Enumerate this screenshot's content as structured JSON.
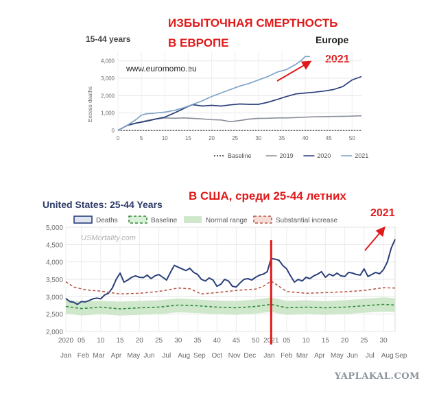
{
  "annotations": {
    "eu_title_line1": "ИЗБЫТОЧНАЯ СМЕРТНОСТЬ",
    "eu_title_line2": "В ЕВРОПЕ",
    "us_title_ru": "В США, среди 25-44 летних",
    "eu_year_note": "2021",
    "us_year_note": "2021",
    "color": "#e0191a"
  },
  "watermark": "YAPLAKAL.COM",
  "chart_data": [
    {
      "type": "line",
      "title": "15-44 years",
      "region": "Europe",
      "source": "www.euromomo.eu",
      "xlabel": "",
      "ylabel": "Excess deaths",
      "xlim": [
        0,
        52
      ],
      "ylim": [
        0,
        4500
      ],
      "x_ticks": [
        0,
        5,
        10,
        15,
        20,
        25,
        30,
        35,
        40,
        45,
        50
      ],
      "y_ticks": [
        0,
        1000,
        2000,
        3000,
        4000
      ],
      "y_tick_labels": [
        "0",
        "1,000",
        "2,000",
        "3,000",
        "4,000"
      ],
      "grid": true,
      "legend_position": "bottom",
      "series": [
        {
          "name": "Baseline",
          "color": "#333333",
          "style": "dotted",
          "x": [
            0,
            52
          ],
          "y": [
            0,
            0
          ]
        },
        {
          "name": "2019",
          "color": "#8a8f99",
          "x": [
            0,
            2,
            4,
            6,
            8,
            10,
            12,
            14,
            16,
            18,
            20,
            22,
            24,
            26,
            28,
            30,
            32,
            34,
            36,
            38,
            40,
            42,
            44,
            46,
            48,
            50,
            52
          ],
          "y": [
            0,
            280,
            420,
            560,
            650,
            720,
            700,
            720,
            690,
            660,
            620,
            600,
            500,
            570,
            650,
            690,
            700,
            720,
            720,
            740,
            760,
            780,
            790,
            800,
            810,
            820,
            840
          ]
        },
        {
          "name": "2020",
          "color": "#2a3f7a",
          "x": [
            0,
            2,
            4,
            6,
            8,
            10,
            12,
            14,
            15,
            16,
            18,
            20,
            22,
            24,
            26,
            28,
            30,
            32,
            34,
            36,
            38,
            40,
            42,
            44,
            46,
            48,
            50,
            52
          ],
          "y": [
            0,
            300,
            430,
            520,
            650,
            760,
            1000,
            1250,
            1380,
            1480,
            1400,
            1440,
            1400,
            1470,
            1520,
            1500,
            1500,
            1620,
            1780,
            1950,
            2100,
            2150,
            2200,
            2260,
            2350,
            2520,
            2900,
            3100
          ]
        },
        {
          "name": "2021",
          "color": "#7ea3c8",
          "x": [
            0,
            2,
            4,
            5,
            6,
            8,
            10,
            12,
            14,
            16,
            18,
            20,
            22,
            24,
            26,
            28,
            30,
            32,
            34,
            36,
            38,
            39,
            40,
            41
          ],
          "y": [
            0,
            300,
            650,
            880,
            950,
            1000,
            1050,
            1150,
            1300,
            1500,
            1700,
            1950,
            2150,
            2350,
            2550,
            2700,
            2900,
            3100,
            3350,
            3500,
            3800,
            4000,
            4250,
            4250
          ]
        }
      ]
    },
    {
      "type": "line",
      "title": "United States: 25-44 Years",
      "source": "USMortality.com",
      "xlabel": "",
      "ylabel": "",
      "xlim": [
        1,
        86
      ],
      "ylim": [
        2000,
        5000
      ],
      "y_ticks": [
        2000,
        2500,
        3000,
        3500,
        4000,
        4500,
        5000
      ],
      "y_tick_labels": [
        "2,000",
        "2,500",
        "3,000",
        "3,500",
        "4,000",
        "4,500",
        "5,000"
      ],
      "week_ticks": [
        {
          "x": 1,
          "label": "2020"
        },
        {
          "x": 5,
          "label": "05"
        },
        {
          "x": 10,
          "label": "10"
        },
        {
          "x": 15,
          "label": "15"
        },
        {
          "x": 20,
          "label": "20"
        },
        {
          "x": 25,
          "label": "25"
        },
        {
          "x": 30,
          "label": "30"
        },
        {
          "x": 35,
          "label": "35"
        },
        {
          "x": 40,
          "label": "40"
        },
        {
          "x": 45,
          "label": "45"
        },
        {
          "x": 50,
          "label": "50"
        },
        {
          "x": 54,
          "label": "2021"
        },
        {
          "x": 58,
          "label": "05"
        },
        {
          "x": 63,
          "label": "10"
        },
        {
          "x": 68,
          "label": "15"
        },
        {
          "x": 73,
          "label": "20"
        },
        {
          "x": 78,
          "label": "25"
        },
        {
          "x": 83,
          "label": "30"
        }
      ],
      "month_ticks": [
        {
          "x": 1,
          "label": "Jan"
        },
        {
          "x": 5.5,
          "label": "Feb"
        },
        {
          "x": 9.5,
          "label": "Mar"
        },
        {
          "x": 14,
          "label": "Apr"
        },
        {
          "x": 18.5,
          "label": "May"
        },
        {
          "x": 22.5,
          "label": "Jun"
        },
        {
          "x": 27,
          "label": "Jul"
        },
        {
          "x": 31.5,
          "label": "Aug"
        },
        {
          "x": 35.5,
          "label": "Sep"
        },
        {
          "x": 40,
          "label": "Oct"
        },
        {
          "x": 44.5,
          "label": "Nov"
        },
        {
          "x": 48.5,
          "label": "Dec"
        },
        {
          "x": 53.5,
          "label": "Jan"
        },
        {
          "x": 58,
          "label": "Feb"
        },
        {
          "x": 62,
          "label": "Mar"
        },
        {
          "x": 66.5,
          "label": "Apr"
        },
        {
          "x": 71,
          "label": "May"
        },
        {
          "x": 75,
          "label": "Jun"
        },
        {
          "x": 79.5,
          "label": "Jul"
        },
        {
          "x": 84,
          "label": "Aug"
        },
        {
          "x": 87.5,
          "label": "Sep"
        }
      ],
      "divider_week": 54,
      "divider_color": "#e0191a",
      "grid": true,
      "legend_position": "top",
      "legend": [
        "Deaths",
        "Baseline",
        "Normal range",
        "Substantial increase"
      ],
      "series": [
        {
          "name": "Deaths",
          "color": "#2a3f7a",
          "x": [
            1,
            2,
            3,
            4,
            5,
            6,
            7,
            8,
            9,
            10,
            11,
            12,
            13,
            14,
            15,
            16,
            17,
            18,
            19,
            20,
            21,
            22,
            23,
            24,
            25,
            26,
            27,
            28,
            29,
            30,
            31,
            32,
            33,
            34,
            35,
            36,
            37,
            38,
            39,
            40,
            41,
            42,
            43,
            44,
            45,
            46,
            47,
            48,
            49,
            50,
            51,
            52,
            53,
            54,
            55,
            56,
            57,
            58,
            59,
            60,
            61,
            62,
            63,
            64,
            65,
            66,
            67,
            68,
            69,
            70,
            71,
            72,
            73,
            74,
            75,
            76,
            77,
            78,
            79,
            80,
            81,
            82,
            83,
            84,
            85,
            86
          ],
          "y": [
            2950,
            2860,
            2840,
            2780,
            2860,
            2850,
            2890,
            2940,
            2960,
            2940,
            3050,
            3100,
            3250,
            3500,
            3680,
            3420,
            3480,
            3560,
            3600,
            3560,
            3550,
            3620,
            3520,
            3600,
            3640,
            3560,
            3480,
            3700,
            3900,
            3850,
            3800,
            3750,
            3820,
            3700,
            3640,
            3500,
            3450,
            3540,
            3480,
            3300,
            3360,
            3500,
            3450,
            3300,
            3280,
            3400,
            3500,
            3520,
            3480,
            3560,
            3620,
            3650,
            3720,
            4100,
            4080,
            4050,
            3900,
            3800,
            3600,
            3420,
            3500,
            3450,
            3560,
            3520,
            3600,
            3650,
            3720,
            3560,
            3650,
            3600,
            3680,
            3600,
            3580,
            3700,
            3680,
            3640,
            3620,
            3800,
            3580,
            3640,
            3700,
            3660,
            3780,
            4000,
            4400,
            4650
          ]
        },
        {
          "name": "Baseline",
          "color": "#2f8a3a",
          "style": "dashed",
          "x": [
            1,
            5,
            10,
            15,
            20,
            25,
            30,
            35,
            40,
            45,
            50,
            54,
            58,
            63,
            68,
            73,
            78,
            83,
            86
          ],
          "y": [
            2720,
            2660,
            2700,
            2650,
            2680,
            2700,
            2760,
            2740,
            2700,
            2680,
            2720,
            2780,
            2680,
            2700,
            2680,
            2700,
            2740,
            2780,
            2760
          ]
        },
        {
          "name": "Normal range",
          "color": "#cfe8cc",
          "x": [
            1,
            5,
            10,
            15,
            20,
            25,
            30,
            35,
            40,
            45,
            50,
            54,
            58,
            63,
            68,
            73,
            78,
            83,
            86
          ],
          "upper": [
            2920,
            2860,
            2880,
            2860,
            2880,
            2900,
            2950,
            2920,
            2890,
            2880,
            2920,
            2980,
            2880,
            2900,
            2870,
            2900,
            2940,
            2980,
            2960
          ],
          "lower": [
            2520,
            2460,
            2500,
            2460,
            2480,
            2500,
            2550,
            2530,
            2500,
            2480,
            2520,
            2560,
            2480,
            2500,
            2480,
            2500,
            2540,
            2570,
            2560
          ]
        },
        {
          "name": "Substantial increase",
          "color": "#b85a4a",
          "style": "dashed",
          "x": [
            1,
            3,
            6,
            10,
            15,
            20,
            25,
            30,
            33,
            36,
            40,
            45,
            50,
            52,
            54,
            56,
            58,
            63,
            68,
            73,
            78,
            83,
            86
          ],
          "y": [
            3430,
            3280,
            3200,
            3160,
            3080,
            3100,
            3150,
            3250,
            3230,
            3080,
            3120,
            3180,
            3220,
            3300,
            3450,
            3300,
            3150,
            3100,
            3120,
            3140,
            3180,
            3260,
            3250
          ]
        }
      ]
    }
  ]
}
